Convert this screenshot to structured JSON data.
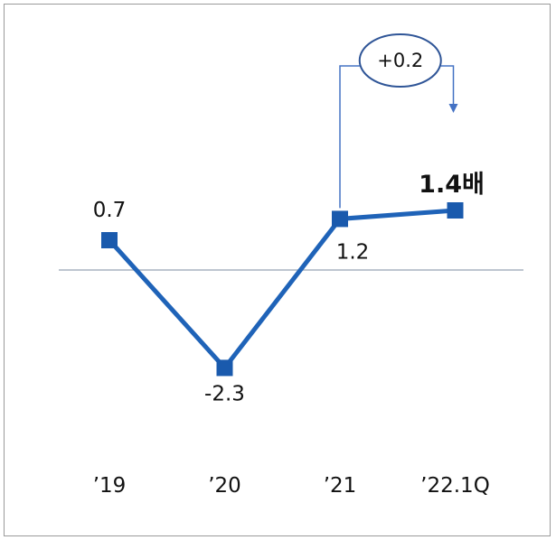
{
  "chart_data": {
    "type": "line",
    "categories": [
      "’19",
      "’20",
      "’21",
      "’22.1Q"
    ],
    "series": [
      {
        "values": [
          0.7,
          -2.3,
          1.2,
          1.4
        ]
      }
    ],
    "data_labels": [
      "0.7",
      "-2.3",
      "1.2",
      "1.4배"
    ],
    "baseline": 0,
    "annotation": {
      "label": "+0.2",
      "from_category": "’21",
      "to_category": "’22.1Q"
    },
    "title": "",
    "xlabel": "",
    "ylabel": "",
    "grid": false,
    "legend": "none"
  },
  "colors": {
    "line": "#1f63b8",
    "marker": "#1a5aad",
    "baseline": "#a8b4c0",
    "annotation": "#4472c4",
    "frame": "#9a9a9a"
  }
}
